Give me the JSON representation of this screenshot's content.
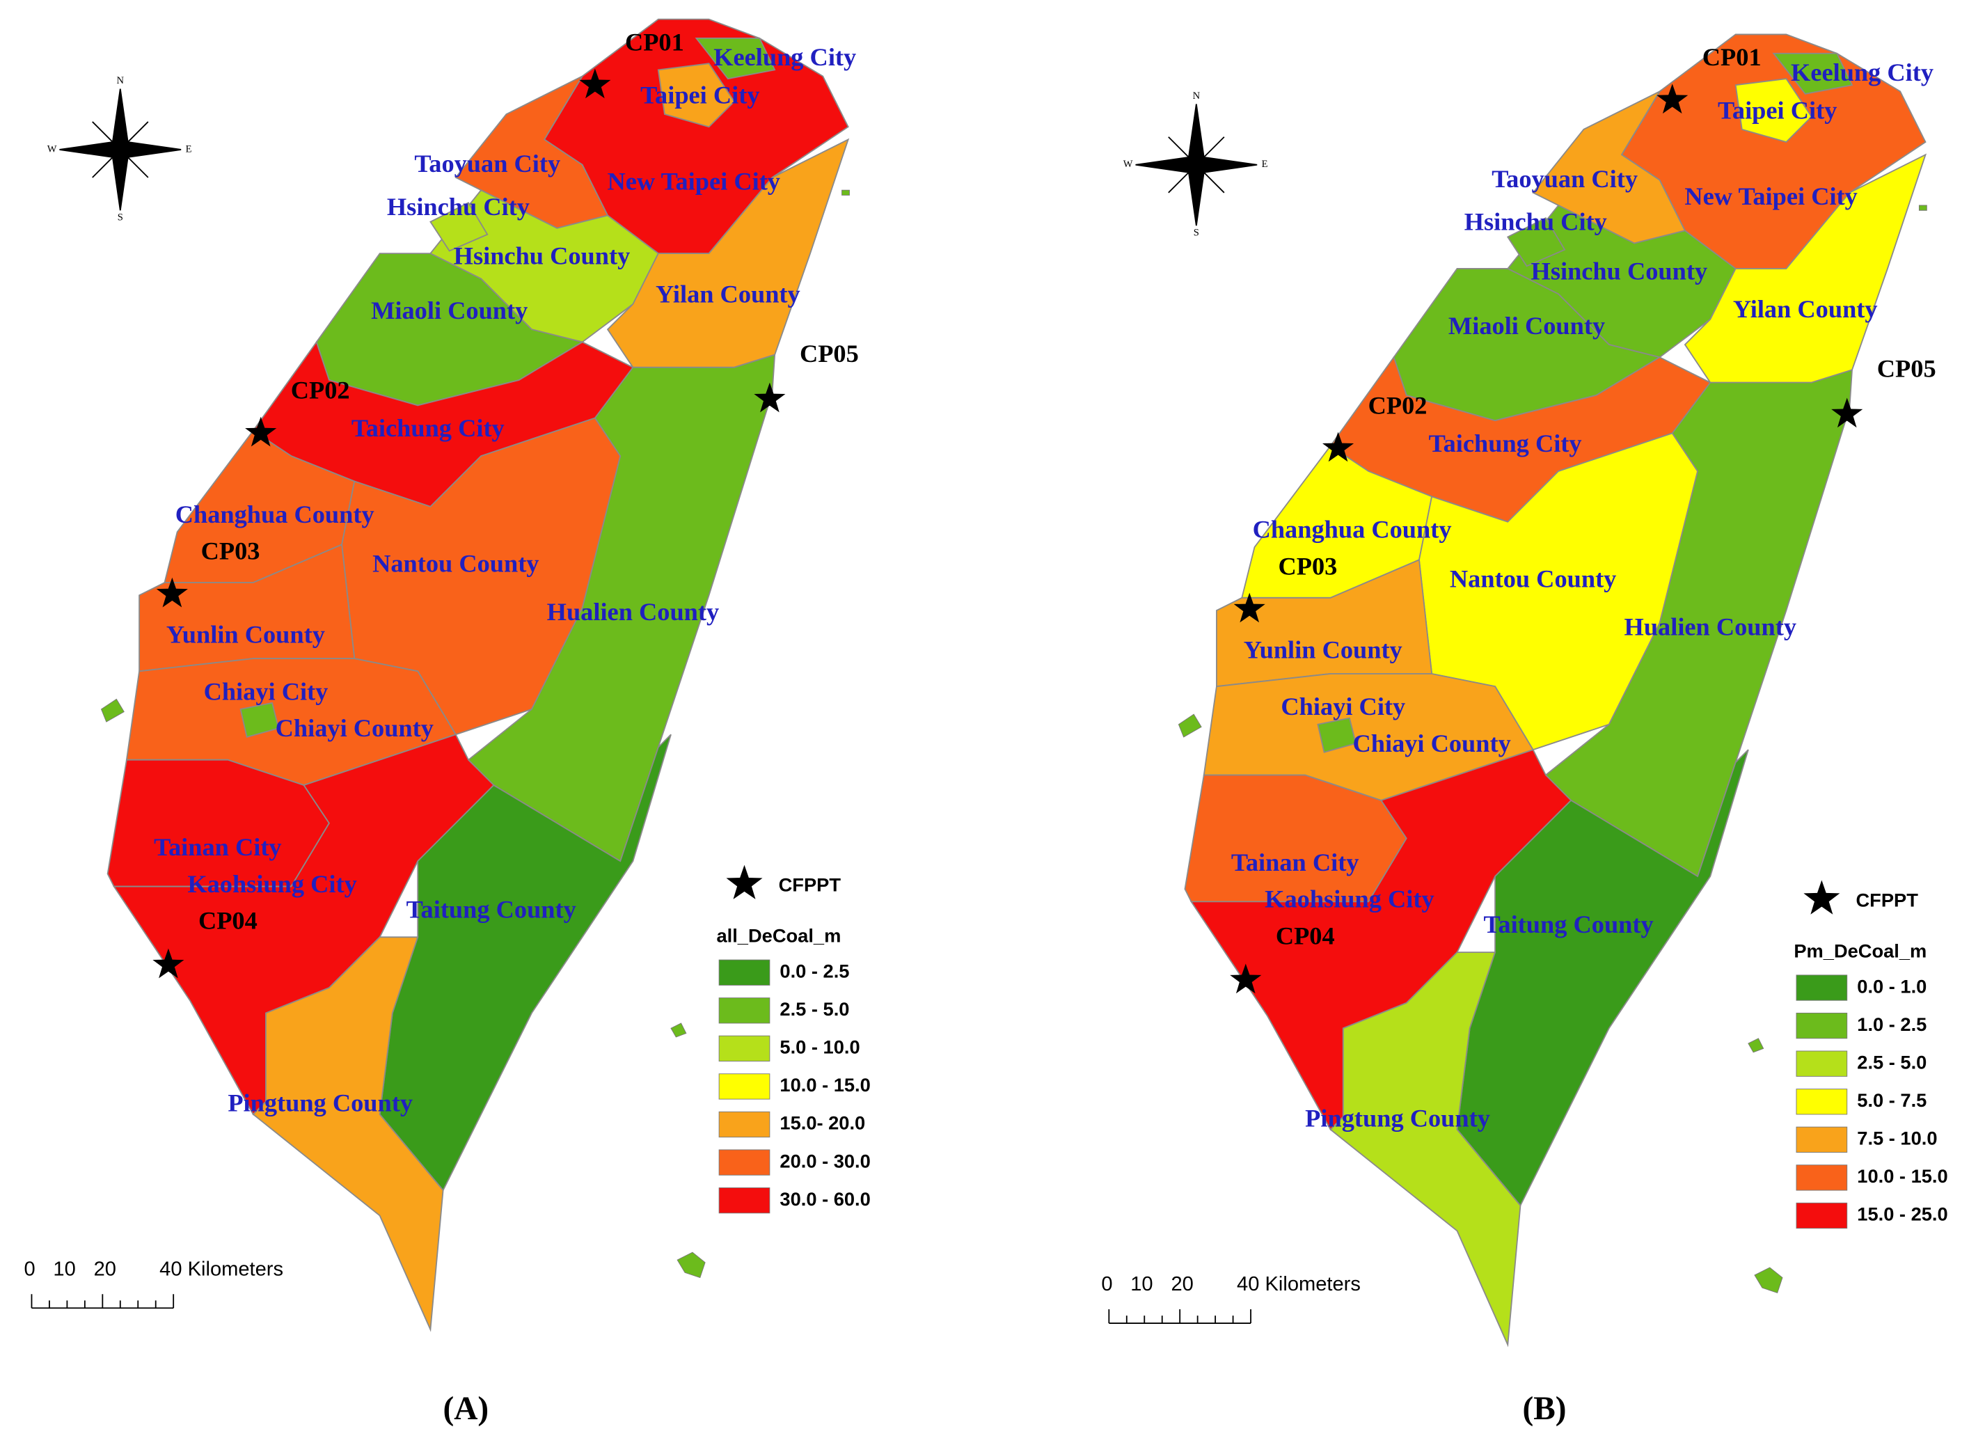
{
  "maps": [
    {
      "panel": "(A)",
      "compass": {
        "n": "N",
        "s": "S",
        "w": "W",
        "e": "E"
      },
      "counties": [
        {
          "name": "New Taipei City",
          "color": "#f40d0d"
        },
        {
          "name": "Taipei City",
          "color": "#f9a31b"
        },
        {
          "name": "Keelung City",
          "color": "#6cbb1c"
        },
        {
          "name": "Taoyuan City",
          "color": "#f9621a"
        },
        {
          "name": "Hsinchu County",
          "color": "#b5e01a"
        },
        {
          "name": "Hsinchu City",
          "color": "#b5e01a"
        },
        {
          "name": "Miaoli County",
          "color": "#6cbb1c"
        },
        {
          "name": "Yilan County",
          "color": "#f9a31b"
        },
        {
          "name": "Taichung City",
          "color": "#f40d0d"
        },
        {
          "name": "Changhua County",
          "color": "#f9621a"
        },
        {
          "name": "Nantou County",
          "color": "#f9621a"
        },
        {
          "name": "Hualien County",
          "color": "#6cbb1c"
        },
        {
          "name": "Yunlin County",
          "color": "#f9621a"
        },
        {
          "name": "Chiayi County",
          "color": "#f9621a"
        },
        {
          "name": "Chiayi City",
          "color": "#6cbb1c"
        },
        {
          "name": "Tainan City",
          "color": "#f40d0d"
        },
        {
          "name": "Kaohsiung City",
          "color": "#f40d0d"
        },
        {
          "name": "Taitung County",
          "color": "#3a9b1a"
        },
        {
          "name": "Pingtung County",
          "color": "#f9a31b"
        }
      ],
      "stations": [
        "CP01",
        "CP02",
        "CP03",
        "CP04",
        "CP05"
      ],
      "legend": {
        "symbol": "CFPPT",
        "title": "all_DeCoal_m",
        "items": [
          {
            "label": "0.0 - 2.5",
            "color": "#3a9b1a"
          },
          {
            "label": "2.5 - 5.0",
            "color": "#6cbb1c"
          },
          {
            "label": "5.0 - 10.0",
            "color": "#b5e01a"
          },
          {
            "label": "10.0 - 15.0",
            "color": "#ffff00"
          },
          {
            "label": "15.0- 20.0",
            "color": "#f9a31b"
          },
          {
            "label": "20.0 - 30.0",
            "color": "#f9621a"
          },
          {
            "label": "30.0 - 60.0",
            "color": "#f40d0d"
          }
        ]
      },
      "scale": [
        "0",
        "10",
        "20",
        "40 Kilometers"
      ]
    },
    {
      "panel": "(B)",
      "compass": {
        "n": "N",
        "s": "S",
        "w": "W",
        "e": "E"
      },
      "counties": [
        {
          "name": "New Taipei City",
          "color": "#f9621a"
        },
        {
          "name": "Taipei City",
          "color": "#ffff00"
        },
        {
          "name": "Keelung City",
          "color": "#6cbb1c"
        },
        {
          "name": "Taoyuan City",
          "color": "#f9a31b"
        },
        {
          "name": "Hsinchu County",
          "color": "#6cbb1c"
        },
        {
          "name": "Hsinchu City",
          "color": "#6cbb1c"
        },
        {
          "name": "Miaoli County",
          "color": "#6cbb1c"
        },
        {
          "name": "Yilan County",
          "color": "#ffff00"
        },
        {
          "name": "Taichung City",
          "color": "#f9621a"
        },
        {
          "name": "Changhua County",
          "color": "#ffff00"
        },
        {
          "name": "Nantou County",
          "color": "#ffff00"
        },
        {
          "name": "Hualien County",
          "color": "#6cbb1c"
        },
        {
          "name": "Yunlin County",
          "color": "#f9a31b"
        },
        {
          "name": "Chiayi County",
          "color": "#f9a31b"
        },
        {
          "name": "Chiayi City",
          "color": "#6cbb1c"
        },
        {
          "name": "Tainan City",
          "color": "#f9621a"
        },
        {
          "name": "Kaohsiung City",
          "color": "#f40d0d"
        },
        {
          "name": "Taitung County",
          "color": "#3a9b1a"
        },
        {
          "name": "Pingtung County",
          "color": "#b5e01a"
        }
      ],
      "stations": [
        "CP01",
        "CP02",
        "CP03",
        "CP04",
        "CP05"
      ],
      "legend": {
        "symbol": "CFPPT",
        "title": "Pm_DeCoal_m",
        "items": [
          {
            "label": "0.0 - 1.0",
            "color": "#3a9b1a"
          },
          {
            "label": "1.0 - 2.5",
            "color": "#6cbb1c"
          },
          {
            "label": "2.5 - 5.0",
            "color": "#b5e01a"
          },
          {
            "label": "5.0 - 7.5",
            "color": "#ffff00"
          },
          {
            "label": "7.5 - 10.0",
            "color": "#f9a31b"
          },
          {
            "label": "10.0 - 15.0",
            "color": "#f9621a"
          },
          {
            "label": "15.0 - 25.0",
            "color": "#f40d0d"
          }
        ]
      },
      "scale": [
        "0",
        "10",
        "20",
        "40 Kilometers"
      ]
    }
  ]
}
